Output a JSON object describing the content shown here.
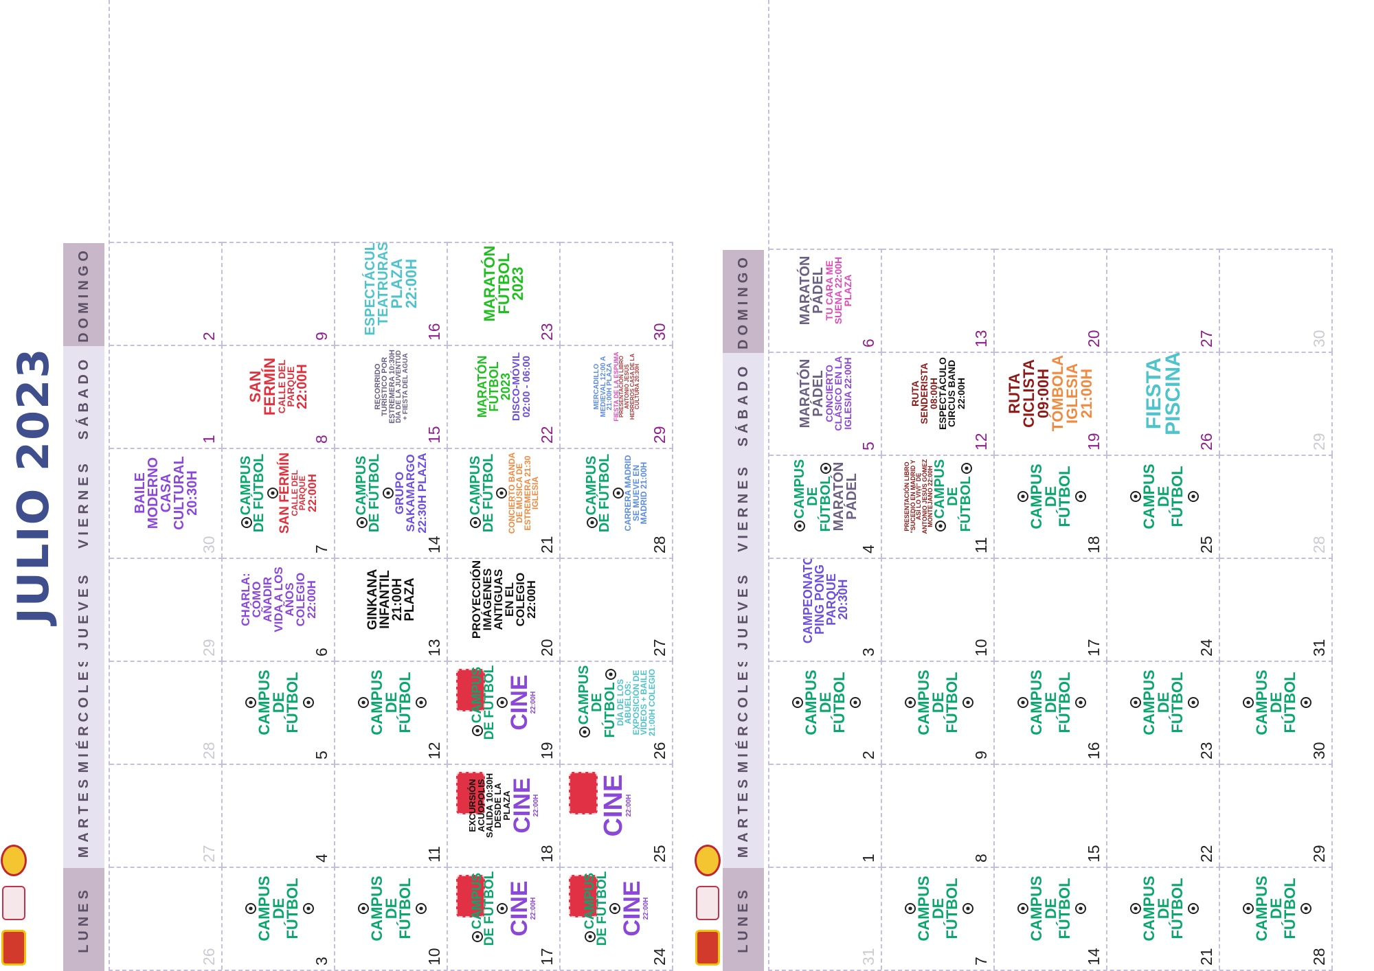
{
  "page_title": "JULIO 2023",
  "weekdays": [
    "LUNES",
    "MARTES",
    "MIÉRCOLES",
    "JUEVES",
    "VIERNES",
    "SÁBADO",
    "DOMINGO"
  ],
  "colors": {
    "title": "#3f4f8d",
    "football": "#0aa66d",
    "cine": "#8a47d9",
    "grid": "#c6bfdb",
    "weekend_day": "#8e1f8c"
  },
  "calendars": [
    {
      "title": "JULIO 2023",
      "weeks": [
        [
          {
            "d": "26",
            "prev": true
          },
          {
            "d": "27",
            "prev": true
          },
          {
            "d": "28",
            "prev": true
          },
          {
            "d": "29",
            "prev": true
          },
          {
            "d": "30",
            "prev": true,
            "ev": [
              {
                "t": "BAILE MODERNO CASA CULTURAL 20:30H",
                "c": "p",
                "s": 20
              }
            ]
          },
          {
            "d": "1",
            "wk": true
          },
          {
            "d": "2",
            "wk": true
          }
        ],
        [
          {
            "d": "3",
            "ev": [
              {
                "t": "CAMPUS DE FÚTBOL",
                "c": "g",
                "s": 22,
                "ball": true
              }
            ]
          },
          {
            "d": "4"
          },
          {
            "d": "5",
            "ev": [
              {
                "t": "CAMPUS DE FÚTBOL",
                "c": "g",
                "s": 22,
                "ball": true
              }
            ]
          },
          {
            "d": "6",
            "ev": [
              {
                "t": "CHARLA: CÓMO AÑADIR VIDA A LOS AÑOS COLEGIO 22:00H",
                "c": "p",
                "s": 17
              }
            ]
          },
          {
            "d": "7",
            "ev": [
              {
                "t": "CAMPUS DE FÚTBOL",
                "c": "g",
                "s": 20,
                "ball": true
              },
              {
                "t": "SAN FERMÍN",
                "c": "r",
                "s": 19
              },
              {
                "t": "CALLE DEL PARQUE",
                "c": "r",
                "s": 12
              },
              {
                "t": "22:00H",
                "c": "r",
                "s": 17
              }
            ]
          },
          {
            "d": "8",
            "wk": true,
            "ev": [
              {
                "t": "SAN FERMÍN",
                "c": "r",
                "s": 22
              },
              {
                "t": "CALLE DEL PARQUE",
                "c": "r",
                "s": 14
              },
              {
                "t": "22:00H",
                "c": "r",
                "s": 20
              }
            ]
          },
          {
            "d": "9",
            "wk": true
          }
        ],
        [
          {
            "d": "10",
            "ev": [
              {
                "t": "CAMPUS DE FÚTBOL",
                "c": "g",
                "s": 22,
                "ball": true
              }
            ]
          },
          {
            "d": "11"
          },
          {
            "d": "12",
            "ev": [
              {
                "t": "CAMPUS DE FÚTBOL",
                "c": "g",
                "s": 22,
                "ball": true
              }
            ]
          },
          {
            "d": "13",
            "ev": [
              {
                "t": "GINKANA INFANTIL 21:00H PLAZA",
                "c": "bk",
                "s": 19
              }
            ]
          },
          {
            "d": "14",
            "ev": [
              {
                "t": "CAMPUS DE FÚTBOL",
                "c": "g",
                "s": 20,
                "ball": true
              },
              {
                "t": "GRUPO SAKAMARGO 22:30H PLAZA",
                "c": "pu",
                "s": 17
              }
            ]
          },
          {
            "d": "15",
            "wk": true,
            "ev": [
              {
                "t": "RECORRIDO TURÍSTICO POR ESTREMERA 10:30H",
                "c": "sl",
                "s": 11
              },
              {
                "t": "DÍA DE LA JUVENTUD + FIESTA DEL AGUA",
                "c": "sl",
                "s": 10
              }
            ]
          },
          {
            "d": "16",
            "wk": true,
            "ev": [
              {
                "t": "ESPECTÁCULO TEATRURAS",
                "c": "tq",
                "s": 20
              },
              {
                "t": "PLAZA 22:00H",
                "c": "tq",
                "s": 22
              }
            ]
          }
        ],
        [
          {
            "d": "17",
            "ev": [
              {
                "t": "CAMPUS DE FÚTBOL",
                "c": "g",
                "s": 19,
                "ball": true
              },
              {
                "t": "CINE",
                "c": "p",
                "s": 34
              },
              {
                "t": "22:00H",
                "c": "p",
                "s": 10
              }
            ],
            "ticket": true
          },
          {
            "d": "18",
            "ev": [
              {
                "t": "EXCURSIÓN ACUOPOLIS SALIDA 10:30H DESDE LA PLAZA",
                "c": "bk",
                "s": 13
              },
              {
                "t": "CINE",
                "c": "p",
                "s": 34
              },
              {
                "t": "22:00H",
                "c": "p",
                "s": 10
              }
            ],
            "ticket": true
          },
          {
            "d": "19",
            "ev": [
              {
                "t": "CAMPUS DE FÚTBOL",
                "c": "g",
                "s": 19,
                "ball": true
              },
              {
                "t": "CINE",
                "c": "p",
                "s": 34
              },
              {
                "t": "22:00H",
                "c": "p",
                "s": 10
              }
            ],
            "ticket": true
          },
          {
            "d": "20",
            "ev": [
              {
                "t": "PROYECCIÓN IMÁGENES ANTIGUAS EN EL COLEGIO 22:00H",
                "c": "bk",
                "s": 17
              }
            ]
          },
          {
            "d": "21",
            "ev": [
              {
                "t": "CAMPUS DE FÚTBOL",
                "c": "g",
                "s": 20,
                "ball": true
              },
              {
                "t": "CONCIERTO BANDA DE MÚSICA DE ESTREMERA 21:30 IGLESIA",
                "c": "o",
                "s": 12
              }
            ]
          },
          {
            "d": "22",
            "wk": true,
            "ev": [
              {
                "t": "MARATÓN FÚTBOL 2023",
                "c": "gr",
                "s": 18
              },
              {
                "t": "DISCO-MÓVIL 02:00 - 06:00",
                "c": "pu",
                "s": 15
              }
            ]
          },
          {
            "d": "23",
            "wk": true,
            "ev": [
              {
                "t": "MARATÓN FÚTBOL 2023",
                "c": "gr",
                "s": 22
              }
            ]
          }
        ],
        [
          {
            "d": "24",
            "ev": [
              {
                "t": "CAMPUS DE FÚTBOL",
                "c": "g",
                "s": 19,
                "ball": true
              },
              {
                "t": "CINE",
                "c": "p",
                "s": 34
              },
              {
                "t": "22:00H",
                "c": "p",
                "s": 10
              }
            ],
            "ticket": true
          },
          {
            "d": "25",
            "ev": [
              {
                "t": "CINE",
                "c": "p",
                "s": 38
              },
              {
                "t": "22:00H",
                "c": "p",
                "s": 10
              }
            ],
            "ticket": true
          },
          {
            "d": "26",
            "ev": [
              {
                "t": "CAMPUS DE FÚTBOL",
                "c": "g",
                "s": 20,
                "ball": true
              },
              {
                "t": "DÍA DE LOS ABUELOS: EXPOSICIÓN DE VÍDEOS + BAILE 21:00H COLEGIO",
                "c": "tq",
                "s": 12
              }
            ]
          },
          {
            "d": "27"
          },
          {
            "d": "28",
            "ev": [
              {
                "t": "CAMPUS DE FÚTBOL",
                "c": "g",
                "s": 20,
                "ball": true
              },
              {
                "t": "CARRERA MADRID SE MUEVE EN MADRID 21:00H",
                "c": "b",
                "s": 12
              }
            ]
          },
          {
            "d": "29",
            "wk": true,
            "ev": [
              {
                "t": "MERCADILLO MEDIEVAL 12:00 A 21:00H PLAZA",
                "c": "b",
                "s": 10
              },
              {
                "t": "FIESTA DE LA ESPUMA",
                "c": "pk",
                "s": 9
              },
              {
                "t": "PRESENTACIÓN LIBRO ANTONIO JESÚS HERREROS CASA DE LA CULTURA 20:30H",
                "c": "rn",
                "s": 8
              }
            ]
          },
          {
            "d": "30",
            "wk": true
          }
        ]
      ]
    },
    {
      "title": "",
      "weeks": [
        [
          {
            "d": "31",
            "prev": true
          },
          {
            "d": "1"
          },
          {
            "d": "2",
            "ev": [
              {
                "t": "CAMPUS DE FÚTBOL",
                "c": "g",
                "s": 22,
                "ball": true
              }
            ]
          },
          {
            "d": "3",
            "ev": [
              {
                "t": "CAMPEONATO PING PONG PARQUE 20:30H",
                "c": "pu",
                "s": 18
              }
            ]
          },
          {
            "d": "4",
            "ev": [
              {
                "t": "CAMPUS DE FÚTBOL",
                "c": "g",
                "s": 20,
                "ball": true
              },
              {
                "t": "MARATÓN PÁDEL",
                "c": "sl",
                "s": 20
              }
            ]
          },
          {
            "d": "5",
            "wk": true,
            "ev": [
              {
                "t": "MARATÓN PÁDEL",
                "c": "sl",
                "s": 20
              },
              {
                "t": "CONCIERTO CLÁSICO EN LA IGLESIA 22:00H",
                "c": "p",
                "s": 14
              }
            ]
          },
          {
            "d": "6",
            "wk": true,
            "ev": [
              {
                "t": "MARATÓN PÁDEL",
                "c": "sl",
                "s": 20
              },
              {
                "t": "TU CARA ME SUENA 22:00H PLAZA",
                "c": "pk",
                "s": 14
              }
            ]
          }
        ],
        [
          {
            "d": "7",
            "ev": [
              {
                "t": "CAMPUS DE FÚTBOL",
                "c": "g",
                "s": 22,
                "ball": true
              }
            ]
          },
          {
            "d": "8"
          },
          {
            "d": "9",
            "ev": [
              {
                "t": "CAMPUS DE FÚTBOL",
                "c": "g",
                "s": 22,
                "ball": true
              }
            ]
          },
          {
            "d": "10"
          },
          {
            "d": "11",
            "ev": [
              {
                "t": "PRESENTACIÓN LIBRO \"SUCEDIÓ EN MADRID Y ASÍ LO VIVÍ\" DE ANTONIO JESÚS GÓMEZ MONTEJANO 22:00H",
                "c": "dr",
                "s": 9
              },
              {
                "t": "CAMPUS DE FÚTBOL",
                "c": "g",
                "s": 20,
                "ball": true
              }
            ]
          },
          {
            "d": "12",
            "wk": true,
            "ev": [
              {
                "t": "RUTA SENDERISTA 08:00H",
                "c": "dr",
                "s": 14
              },
              {
                "t": "ESPECTÁCULO CIRCUS BAND 22:00H",
                "c": "bk",
                "s": 14
              }
            ]
          },
          {
            "d": "13",
            "wk": true
          }
        ],
        [
          {
            "d": "14",
            "ev": [
              {
                "t": "CAMPUS DE FÚTBOL",
                "c": "g",
                "s": 22,
                "ball": true
              }
            ]
          },
          {
            "d": "15"
          },
          {
            "d": "16",
            "ev": [
              {
                "t": "CAMPUS DE FÚTBOL",
                "c": "g",
                "s": 22,
                "ball": true
              }
            ]
          },
          {
            "d": "17"
          },
          {
            "d": "18",
            "ev": [
              {
                "t": "CAMPUS DE FÚTBOL",
                "c": "g",
                "s": 22,
                "ball": true
              }
            ]
          },
          {
            "d": "19",
            "wk": true,
            "ev": [
              {
                "t": "RUTA CICLISTA 09:00H",
                "c": "dr",
                "s": 22
              },
              {
                "t": "TÓMBOLA IGLESIA 21:00H",
                "c": "o",
                "s": 22
              }
            ]
          },
          {
            "d": "20",
            "wk": true
          }
        ],
        [
          {
            "d": "21",
            "ev": [
              {
                "t": "CAMPUS DE FÚTBOL",
                "c": "g",
                "s": 22,
                "ball": true
              }
            ]
          },
          {
            "d": "22"
          },
          {
            "d": "23",
            "ev": [
              {
                "t": "CAMPUS DE FÚTBOL",
                "c": "g",
                "s": 22,
                "ball": true
              }
            ]
          },
          {
            "d": "24"
          },
          {
            "d": "25",
            "ev": [
              {
                "t": "CAMPUS DE FÚTBOL",
                "c": "g",
                "s": 22,
                "ball": true
              }
            ]
          },
          {
            "d": "26",
            "wk": true,
            "ev": [
              {
                "t": "FIESTA PISCINA",
                "c": "tq",
                "s": 30
              }
            ]
          },
          {
            "d": "27",
            "wk": true
          }
        ],
        [
          {
            "d": "28",
            "ev": [
              {
                "t": "CAMPUS DE FÚTBOL",
                "c": "g",
                "s": 22,
                "ball": true
              }
            ]
          },
          {
            "d": "29"
          },
          {
            "d": "30",
            "ev": [
              {
                "t": "CAMPUS DE FÚTBOL",
                "c": "g",
                "s": 22,
                "ball": true
              }
            ]
          },
          {
            "d": "31"
          },
          {
            "d": "28",
            "prev": true
          },
          {
            "d": "29",
            "prev": true
          },
          {
            "d": "30",
            "prev": true
          }
        ]
      ]
    }
  ]
}
